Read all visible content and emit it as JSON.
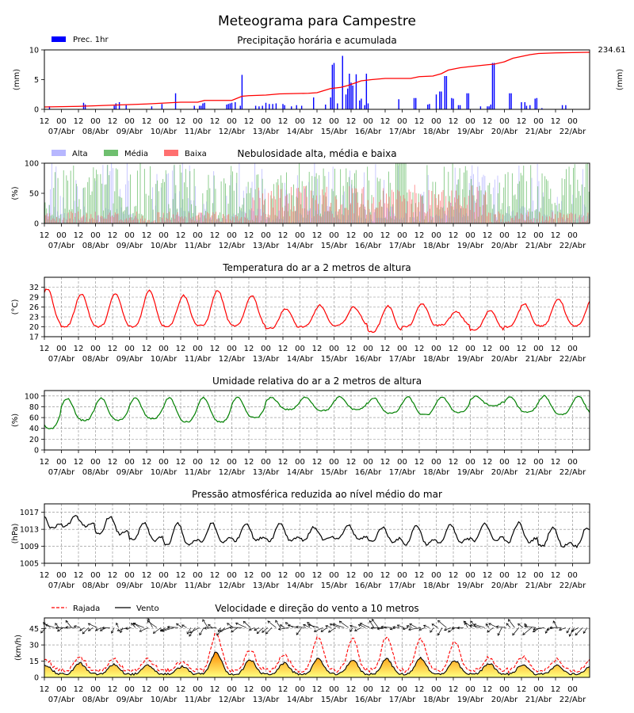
{
  "page": {
    "title": "Meteograma para Campestre"
  },
  "colors": {
    "precip": "#0000ff",
    "accum": "#ff0000",
    "cloud_high": "#b7b7ff",
    "cloud_mid": "#6fbf6f",
    "cloud_low": "#ff7070",
    "temp": "#ff0000",
    "humidity": "#008000",
    "pressure": "#000000",
    "gust": "#ff0000",
    "wind": "#000000",
    "wind_fill_top": "#ff8c00",
    "wind_fill_bottom": "#ffff80"
  },
  "time_axis": {
    "hour_ticks": [
      "12",
      "00",
      "12",
      "00",
      "12",
      "00",
      "12",
      "00",
      "12",
      "00",
      "12",
      "00",
      "12",
      "00",
      "12",
      "00",
      "12",
      "00",
      "12",
      "00",
      "12",
      "00",
      "12",
      "00",
      "12",
      "00",
      "12",
      "00",
      "12",
      "00",
      "12",
      "00"
    ],
    "dates": [
      "07/Abr",
      "08/Abr",
      "09/Abr",
      "10/Abr",
      "11/Abr",
      "12/Abr",
      "13/Abr",
      "14/Abr",
      "15/Abr",
      "16/Abr",
      "17/Abr",
      "18/Abr",
      "19/Abr",
      "20/Abr",
      "21/Abr",
      "22/Abr"
    ]
  },
  "chart_data": [
    {
      "type": "bar",
      "title": "Precipitação horária e acumulada",
      "ylabel": "(mm)",
      "ylabel_right": "(mm)",
      "ylim": [
        0,
        10
      ],
      "yticks": [
        "0",
        "5",
        "10"
      ],
      "legend": [
        "Prec. 1hr"
      ],
      "accumulated_total": "234.61",
      "series": [
        {
          "name": "Prec. 1hr",
          "values_note": "hourly bars",
          "events": [
            [
              0.3,
              0.5
            ],
            [
              2.3,
              1.1
            ],
            [
              2.4,
              0.8
            ],
            [
              4.1,
              0.6
            ],
            [
              4.2,
              1.0
            ],
            [
              4.4,
              1.2
            ],
            [
              4.8,
              0.7
            ],
            [
              6.3,
              0.5
            ],
            [
              6.9,
              0.9
            ],
            [
              7.7,
              2.7
            ],
            [
              8.8,
              0.6
            ],
            [
              9.1,
              0.6
            ],
            [
              9.2,
              0.6
            ],
            [
              9.3,
              1.0
            ],
            [
              9.4,
              1.1
            ],
            [
              10.7,
              0.8
            ],
            [
              10.8,
              0.9
            ],
            [
              10.9,
              1.0
            ],
            [
              11.0,
              1.1
            ],
            [
              11.2,
              1.2
            ],
            [
              11.5,
              0.6
            ],
            [
              11.6,
              5.8
            ],
            [
              12.4,
              0.6
            ],
            [
              12.6,
              0.5
            ],
            [
              12.8,
              0.6
            ],
            [
              13.0,
              1.1
            ],
            [
              13.2,
              0.9
            ],
            [
              13.4,
              0.9
            ],
            [
              13.6,
              1.0
            ],
            [
              14.0,
              0.9
            ],
            [
              14.1,
              0.7
            ],
            [
              14.5,
              0.5
            ],
            [
              14.8,
              0.7
            ],
            [
              15.1,
              0.6
            ],
            [
              15.8,
              2.0
            ],
            [
              16.5,
              0.8
            ],
            [
              16.8,
              2.0
            ],
            [
              16.9,
              7.5
            ],
            [
              17.0,
              7.8
            ],
            [
              17.2,
              1.0
            ],
            [
              17.5,
              9.0
            ],
            [
              17.7,
              2.5
            ],
            [
              17.8,
              3.5
            ],
            [
              17.9,
              6.0
            ],
            [
              18.0,
              4.5
            ],
            [
              18.1,
              4.0
            ],
            [
              18.3,
              5.9
            ],
            [
              18.5,
              1.5
            ],
            [
              18.6,
              1.8
            ],
            [
              18.8,
              0.7
            ],
            [
              18.9,
              6.0
            ],
            [
              19.0,
              1.0
            ],
            [
              20.8,
              1.7
            ],
            [
              21.7,
              1.9
            ],
            [
              21.8,
              1.9
            ],
            [
              22.5,
              0.8
            ],
            [
              22.6,
              0.9
            ],
            [
              23.0,
              2.5
            ],
            [
              23.2,
              3.0
            ],
            [
              23.3,
              3.0
            ],
            [
              23.5,
              5.6
            ],
            [
              23.6,
              5.6
            ],
            [
              23.9,
              1.9
            ],
            [
              24.0,
              1.8
            ],
            [
              24.3,
              0.7
            ],
            [
              24.4,
              0.7
            ],
            [
              24.8,
              2.7
            ],
            [
              24.9,
              2.7
            ],
            [
              25.6,
              0.5
            ],
            [
              26.0,
              0.5
            ],
            [
              26.1,
              0.5
            ],
            [
              26.2,
              0.8
            ],
            [
              26.3,
              7.8
            ],
            [
              26.4,
              7.8
            ],
            [
              27.3,
              2.7
            ],
            [
              27.4,
              2.7
            ],
            [
              28.0,
              1.2
            ],
            [
              28.2,
              1.2
            ],
            [
              28.3,
              0.6
            ],
            [
              28.5,
              0.7
            ],
            [
              28.8,
              1.8
            ],
            [
              28.9,
              1.9
            ],
            [
              29.2,
              0.2
            ],
            [
              30.4,
              0.7
            ],
            [
              30.6,
              0.7
            ]
          ]
        },
        {
          "name": "Acumulada",
          "axis": "right",
          "points": [
            [
              0,
              0.4
            ],
            [
              2,
              0.5
            ],
            [
              4,
              0.7
            ],
            [
              6,
              0.9
            ],
            [
              8,
              1.2
            ],
            [
              9,
              1.2
            ],
            [
              9.4,
              1.5
            ],
            [
              11,
              1.5
            ],
            [
              11.6,
              2.2
            ],
            [
              12,
              2.3
            ],
            [
              13,
              2.4
            ],
            [
              13.8,
              2.6
            ],
            [
              15.5,
              2.7
            ],
            [
              16,
              2.8
            ],
            [
              16.8,
              3.5
            ],
            [
              17.4,
              3.7
            ],
            [
              17.8,
              4.0
            ],
            [
              18.2,
              4.4
            ],
            [
              18.6,
              4.8
            ],
            [
              19.2,
              5.0
            ],
            [
              20,
              5.2
            ],
            [
              21.5,
              5.2
            ],
            [
              22,
              5.5
            ],
            [
              22.8,
              5.6
            ],
            [
              23.3,
              6.0
            ],
            [
              23.7,
              6.6
            ],
            [
              24.4,
              7.0
            ],
            [
              25,
              7.2
            ],
            [
              26,
              7.5
            ],
            [
              26.4,
              7.6
            ],
            [
              27,
              8.0
            ],
            [
              27.5,
              8.6
            ],
            [
              28.5,
              9.2
            ],
            [
              29,
              9.4
            ],
            [
              30,
              9.5
            ],
            [
              32,
              9.6
            ]
          ]
        }
      ]
    },
    {
      "type": "bar",
      "title": "Nebulosidade alta, média e baixa",
      "ylabel": "(%)",
      "ylim": [
        0,
        100
      ],
      "yticks": [
        "0",
        "50",
        "100"
      ],
      "series": [
        {
          "name": "Alta"
        },
        {
          "name": "Média"
        },
        {
          "name": "Baixa"
        }
      ]
    },
    {
      "type": "line",
      "title": "Temperatura do ar a 2 metros de altura",
      "ylabel": "(°C)",
      "ylim": [
        17,
        35
      ],
      "yticks": [
        "17",
        "20",
        "23",
        "26",
        "29",
        "32"
      ],
      "series": [
        {
          "name": "Temperatura",
          "daily_min": [
            20.5,
            20.0,
            20.0,
            20.0,
            20.2,
            20.3,
            20.3,
            19.5,
            20.0,
            20.5,
            18.5,
            20.0,
            20.5,
            19.0,
            20.0,
            20.3
          ],
          "daily_max": [
            31.5,
            30.0,
            30.0,
            31.0,
            29.5,
            31.0,
            29.5,
            25.5,
            26.5,
            26.0,
            26.3,
            27.0,
            24.5,
            25.0,
            27.0,
            28.5
          ]
        }
      ]
    },
    {
      "type": "line",
      "title": "Umidade relativa do ar a 2 metros de altura",
      "ylabel": "(%)",
      "ylim": [
        0,
        110
      ],
      "yticks": [
        "0",
        "20",
        "40",
        "60",
        "80",
        "100"
      ],
      "series": [
        {
          "name": "Umidade",
          "daily_min": [
            40,
            55,
            55,
            58,
            52,
            52,
            60,
            75,
            73,
            75,
            68,
            65,
            70,
            82,
            70,
            66
          ],
          "daily_max": [
            93,
            95,
            96,
            96,
            97,
            97,
            97,
            97,
            98,
            98,
            96,
            98,
            98,
            99,
            98,
            100
          ]
        }
      ]
    },
    {
      "type": "line",
      "title": "Pressão atmosférica reduzida ao nível médio do mar",
      "ylabel": "(hPa)",
      "ylim": [
        1005,
        1019
      ],
      "yticks": [
        "1005",
        "1009",
        "1013",
        "1017"
      ],
      "series": [
        {
          "name": "Pressão",
          "daily_min": [
            1012.0,
            1013.0,
            1010.5,
            1009.0,
            1007.5,
            1008.5,
            1009.0,
            1009.0,
            1009.5,
            1009.5,
            1009.0,
            1008.0,
            1008.5,
            1009.0,
            1008.5,
            1007.5
          ],
          "daily_max": [
            1017.0,
            1016.0,
            1016.0,
            1014.5,
            1014.5,
            1014.5,
            1014.5,
            1014.5,
            1013.5,
            1014.0,
            1013.5,
            1014.0,
            1014.0,
            1014.5,
            1014.5,
            1013.5
          ]
        }
      ]
    },
    {
      "type": "area",
      "title": "Velocidade e direção do vento a 10 metros",
      "ylabel": "(km/h)",
      "ylim": [
        0,
        55
      ],
      "yticks": [
        "0",
        "15",
        "30",
        "45"
      ],
      "series": [
        {
          "name": "Rajada",
          "daily_max": [
            14,
            16,
            15,
            14,
            12,
            38,
            23,
            18,
            34,
            33,
            35,
            33,
            30,
            16,
            17,
            14
          ]
        },
        {
          "name": "Vento",
          "daily_max": [
            10,
            12,
            11,
            10,
            9,
            22,
            15,
            12,
            16,
            15,
            16,
            17,
            14,
            12,
            11,
            10
          ]
        }
      ]
    }
  ]
}
